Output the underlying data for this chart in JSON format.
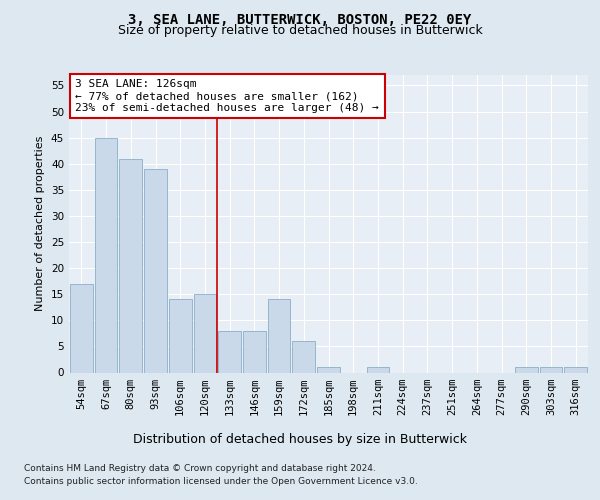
{
  "title": "3, SEA LANE, BUTTERWICK, BOSTON, PE22 0EY",
  "subtitle": "Size of property relative to detached houses in Butterwick",
  "xlabel": "Distribution of detached houses by size in Butterwick",
  "ylabel": "Number of detached properties",
  "categories": [
    "54sqm",
    "67sqm",
    "80sqm",
    "93sqm",
    "106sqm",
    "120sqm",
    "133sqm",
    "146sqm",
    "159sqm",
    "172sqm",
    "185sqm",
    "198sqm",
    "211sqm",
    "224sqm",
    "237sqm",
    "251sqm",
    "264sqm",
    "277sqm",
    "290sqm",
    "303sqm",
    "316sqm"
  ],
  "values": [
    17,
    45,
    41,
    39,
    14,
    15,
    8,
    8,
    14,
    6,
    1,
    0,
    1,
    0,
    0,
    0,
    0,
    0,
    1,
    1,
    1
  ],
  "bar_color": "#c9d9e9",
  "bar_edge_color": "#8aafc8",
  "property_line_index": 5.5,
  "annotation_line1": "3 SEA LANE: 126sqm",
  "annotation_line2": "← 77% of detached houses are smaller (162)",
  "annotation_line3": "23% of semi-detached houses are larger (48) →",
  "annotation_box_color": "#ffffff",
  "annotation_box_edge_color": "#cc0000",
  "vline_color": "#cc0000",
  "ylim": [
    0,
    57
  ],
  "yticks": [
    0,
    5,
    10,
    15,
    20,
    25,
    30,
    35,
    40,
    45,
    50,
    55
  ],
  "background_color": "#dde8f0",
  "axes_background_color": "#e8eef5",
  "grid_color": "#ffffff",
  "footer_line1": "Contains HM Land Registry data © Crown copyright and database right 2024.",
  "footer_line2": "Contains public sector information licensed under the Open Government Licence v3.0.",
  "title_fontsize": 10,
  "subtitle_fontsize": 9,
  "xlabel_fontsize": 9,
  "ylabel_fontsize": 8,
  "tick_fontsize": 7.5,
  "annotation_fontsize": 8,
  "footer_fontsize": 6.5
}
